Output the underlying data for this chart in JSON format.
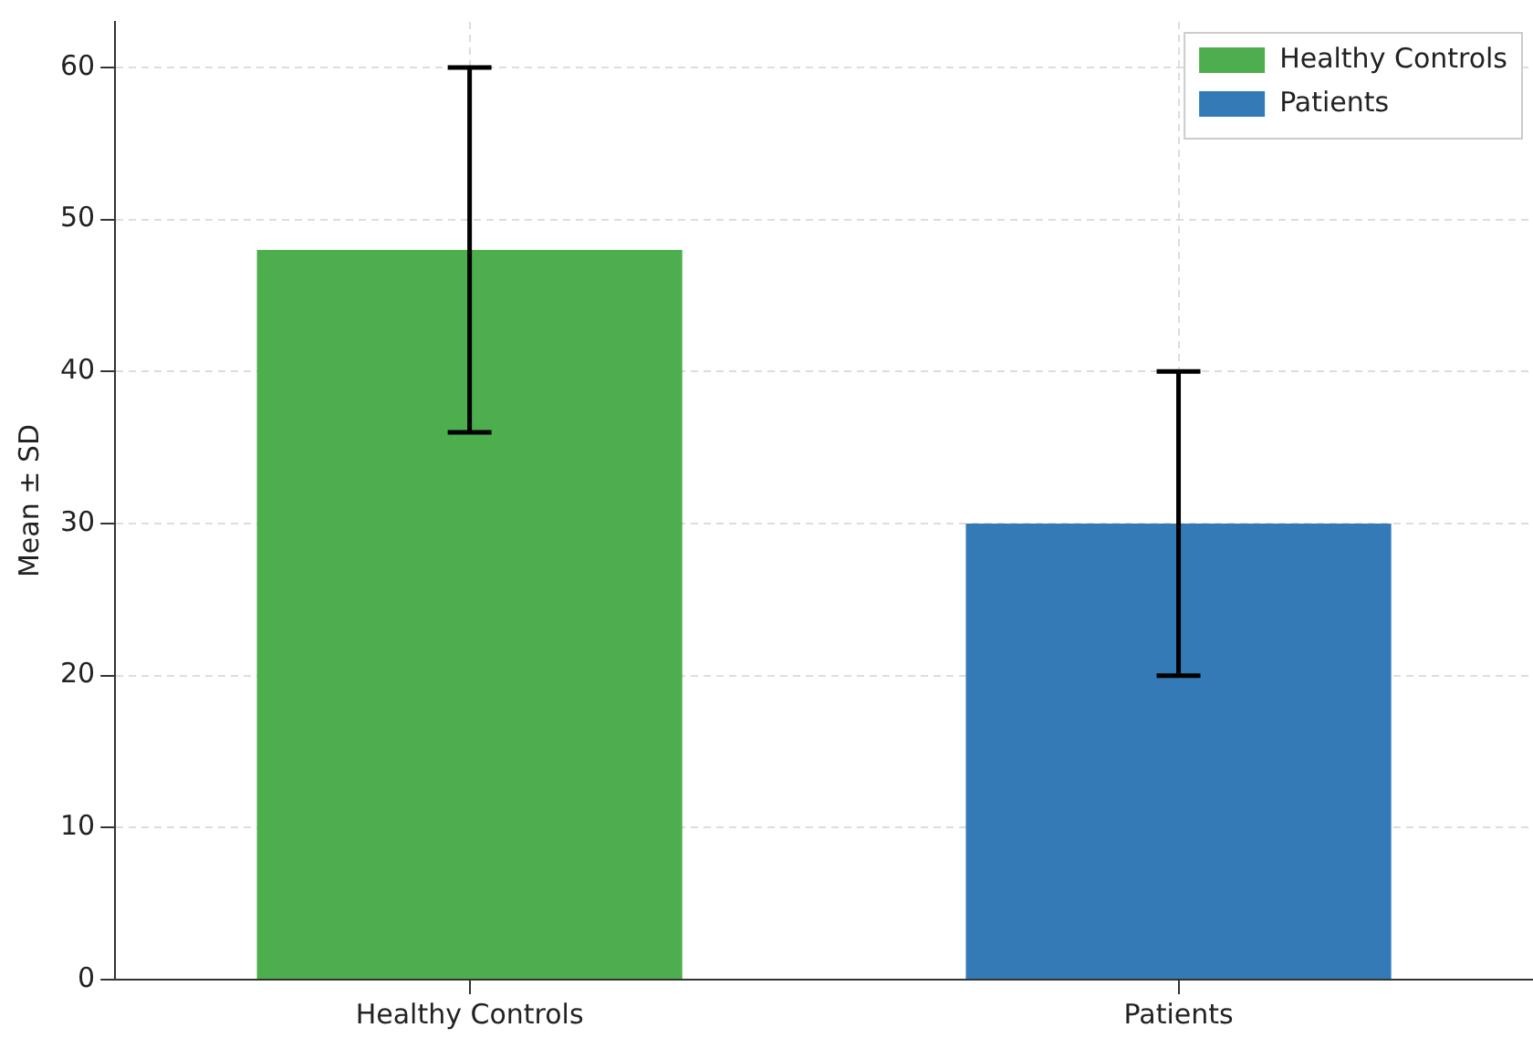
{
  "chart_data": {
    "type": "bar",
    "ylabel": "Mean ± SD",
    "categories": [
      "Healthy Controls",
      "Patients"
    ],
    "series": [
      {
        "name": "Healthy Controls",
        "color": "#4cae4c",
        "values": [
          48,
          null
        ],
        "errors": [
          12,
          null
        ]
      },
      {
        "name": "Patients",
        "color": "#337ab7",
        "values": [
          null,
          30
        ],
        "errors": [
          null,
          10
        ]
      }
    ],
    "ylim": [
      0,
      63
    ],
    "yticks": [
      0,
      10,
      20,
      30,
      40,
      50,
      60
    ],
    "grid": true,
    "legend": "top right"
  }
}
